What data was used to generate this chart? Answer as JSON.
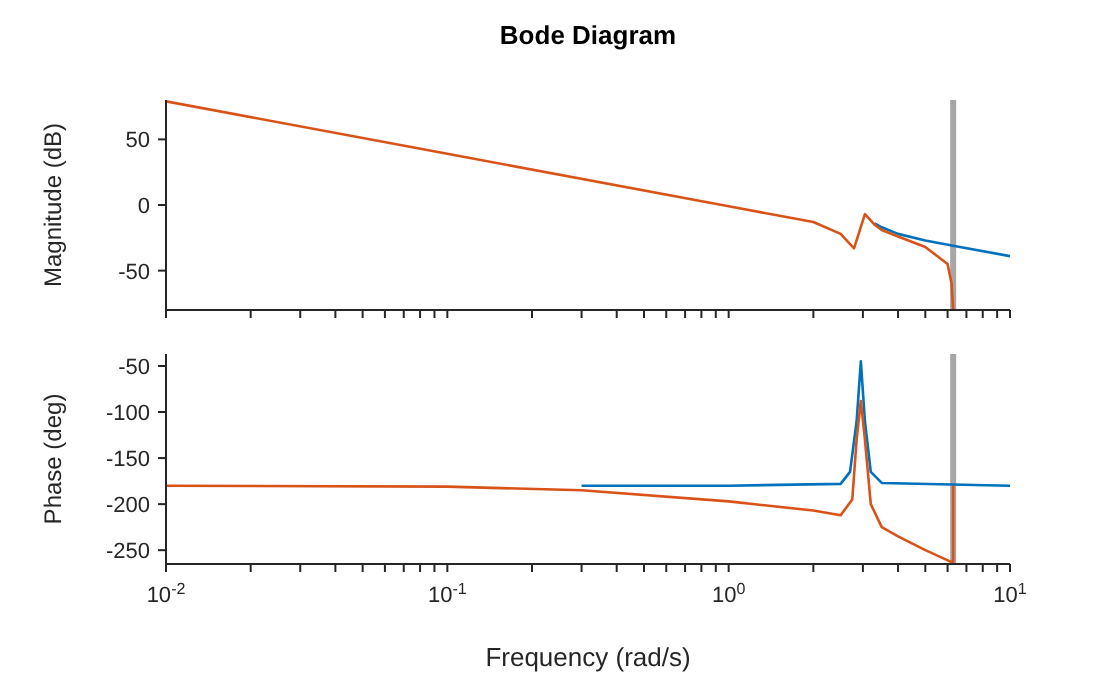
{
  "chart_data": [
    {
      "type": "line",
      "title": "Bode Diagram",
      "ylabel": "Magnitude (dB)",
      "log": "x",
      "tick_labels": "y",
      "grid": false,
      "xlim": [
        0.01,
        10
      ],
      "ylim": [
        -80,
        80
      ],
      "xticks": [
        {
          "value": 0.01,
          "label": null
        },
        {
          "value": 0.02,
          "label": null
        },
        {
          "value": 0.03,
          "label": null
        },
        {
          "value": 0.04,
          "label": null
        },
        {
          "value": 0.05,
          "label": null
        },
        {
          "value": 0.06,
          "label": null
        },
        {
          "value": 0.07,
          "label": null
        },
        {
          "value": 0.08,
          "label": null
        },
        {
          "value": 0.09,
          "label": null
        },
        {
          "value": 0.1,
          "label": null
        },
        {
          "value": 0.2,
          "label": null
        },
        {
          "value": 0.3,
          "label": null
        },
        {
          "value": 0.4,
          "label": null
        },
        {
          "value": 0.5,
          "label": null
        },
        {
          "value": 0.6,
          "label": null
        },
        {
          "value": 0.7,
          "label": null
        },
        {
          "value": 0.8,
          "label": null
        },
        {
          "value": 0.9,
          "label": null
        },
        {
          "value": 1,
          "label": null
        },
        {
          "value": 2,
          "label": null
        },
        {
          "value": 3,
          "label": null
        },
        {
          "value": 4,
          "label": null
        },
        {
          "value": 5,
          "label": null
        },
        {
          "value": 6,
          "label": null
        },
        {
          "value": 7,
          "label": null
        },
        {
          "value": 8,
          "label": null
        },
        {
          "value": 9,
          "label": null
        },
        {
          "value": 10,
          "label": null
        }
      ],
      "yticks": [
        -50,
        0,
        50
      ],
      "ref_lines": [
        {
          "axis": "x",
          "value": 6.28,
          "label": null,
          "color": "#a6a6a6"
        }
      ],
      "series": [
        {
          "color": "#0072bd",
          "x": [
            3.3,
            3.5,
            4,
            5,
            6.28,
            10
          ],
          "values": [
            -14,
            -17,
            -22,
            -27,
            -31,
            -39
          ]
        },
        {
          "color": "#d95319",
          "x": [
            0.01,
            0.1,
            1,
            1.5,
            2,
            2.5,
            2.79,
            3.05,
            3.3,
            3.5,
            4,
            5,
            6,
            6.2,
            6.28
          ],
          "values": [
            79,
            39,
            -1,
            -8,
            -13,
            -22,
            -33,
            -7,
            -15,
            -19,
            -24,
            -32,
            -45,
            -60,
            -80
          ]
        }
      ]
    },
    {
      "type": "line",
      "xlabel": "Frequency (rad/s)",
      "ylabel": "Phase (deg)",
      "log": "x",
      "grid": false,
      "xlim": [
        0.01,
        10
      ],
      "ylim": [
        -265,
        -37
      ],
      "xticks": [
        {
          "value": 0.01,
          "label": "10$^{-2}$"
        },
        {
          "value": 0.02,
          "label": null
        },
        {
          "value": 0.03,
          "label": null
        },
        {
          "value": 0.04,
          "label": null
        },
        {
          "value": 0.05,
          "label": null
        },
        {
          "value": 0.06,
          "label": null
        },
        {
          "value": 0.07,
          "label": null
        },
        {
          "value": 0.08,
          "label": null
        },
        {
          "value": 0.09,
          "label": null
        },
        {
          "value": 0.1,
          "label": "10$^{-1}$"
        },
        {
          "value": 0.2,
          "label": null
        },
        {
          "value": 0.3,
          "label": null
        },
        {
          "value": 0.4,
          "label": null
        },
        {
          "value": 0.5,
          "label": null
        },
        {
          "value": 0.6,
          "label": null
        },
        {
          "value": 0.7,
          "label": null
        },
        {
          "value": 0.8,
          "label": null
        },
        {
          "value": 0.9,
          "label": null
        },
        {
          "value": 1,
          "label": "10$^{0}$"
        },
        {
          "value": 2,
          "label": null
        },
        {
          "value": 3,
          "label": null
        },
        {
          "value": 4,
          "label": null
        },
        {
          "value": 5,
          "label": null
        },
        {
          "value": 6,
          "label": null
        },
        {
          "value": 7,
          "label": null
        },
        {
          "value": 8,
          "label": null
        },
        {
          "value": 9,
          "label": null
        },
        {
          "value": 10,
          "label": "10$^{1}$"
        }
      ],
      "yticks": [
        -250,
        -200,
        -150,
        -100,
        -50
      ],
      "ref_lines": [
        {
          "axis": "x",
          "value": 6.28,
          "label": null,
          "color": "#a6a6a6"
        }
      ],
      "series": [
        {
          "color": "#0072bd",
          "x": [
            0.3,
            1,
            2.5,
            2.7,
            2.85,
            2.95,
            3.05,
            3.2,
            3.5,
            10
          ],
          "values": [
            -180,
            -180,
            -178,
            -165,
            -110,
            -45,
            -110,
            -165,
            -177,
            -180
          ]
        },
        {
          "color": "#d95319",
          "x": [
            0.01,
            0.1,
            0.3,
            1,
            2,
            2.5,
            2.75,
            2.85,
            2.95,
            3.05,
            3.2,
            3.5,
            4,
            5,
            6.2,
            6.28,
            6.28
          ],
          "values": [
            -180,
            -181,
            -185,
            -197,
            -207,
            -212,
            -195,
            -130,
            -88,
            -130,
            -200,
            -225,
            -235,
            -250,
            -263,
            -263,
            -180
          ]
        }
      ]
    }
  ]
}
